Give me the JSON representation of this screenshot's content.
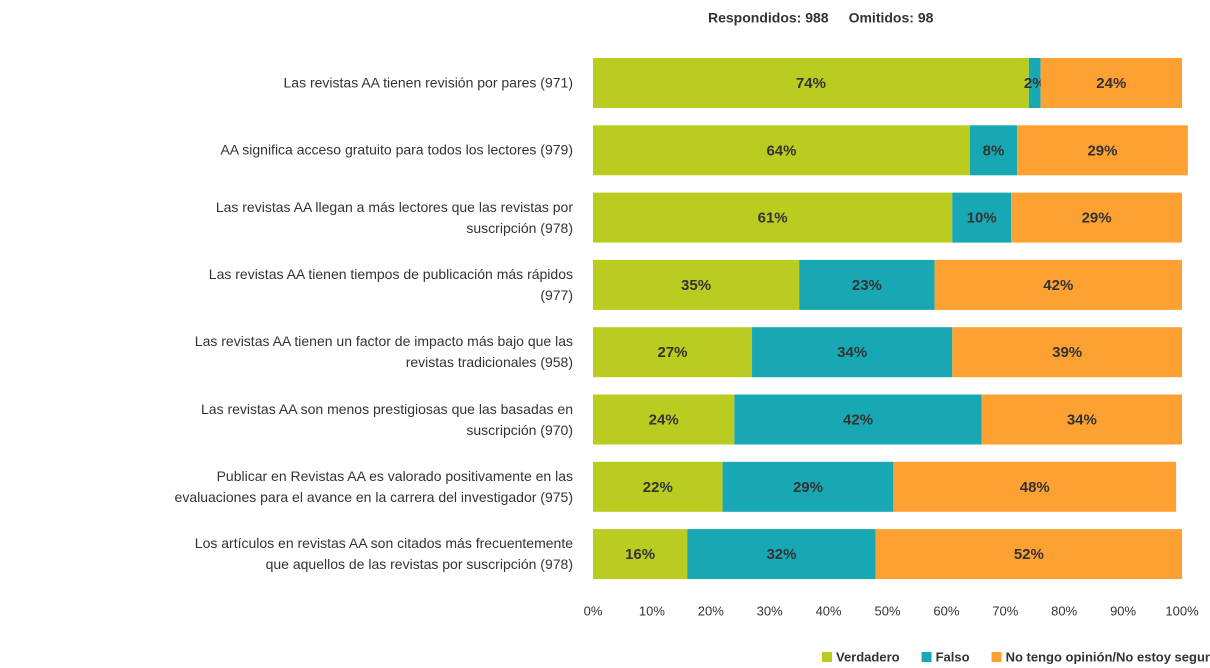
{
  "chart_data": {
    "type": "stacked_bar_horizontal",
    "annotations": [
      "Respondidos: 988",
      "Omitidos: 98"
    ],
    "categories": [
      "Las revistas AA tienen revisión por pares (971)",
      "AA significa acceso gratuito para todos los lectores (979)",
      "Las revistas AA llegan a más lectores que las revistas por\nsuscripción (978)",
      "Las revistas AA tienen tiempos de publicación más rápidos\n(977)",
      "Las revistas AA tienen un factor de impacto más bajo que las\nrevistas tradicionales (958)",
      "Las revistas AA son menos prestigiosas que las basadas en\nsuscripción (970)",
      "Publicar en Revistas AA es valorado positivamente en las\nevaluaciones para el avance en la carrera del investigador (975)",
      "Los artículos en revistas AA son citados más frecuentemente\nque aquellos de las revistas por suscripción (978)"
    ],
    "series": [
      {
        "name": "Verdadero",
        "color": "#b9cc1f",
        "values": [
          74,
          64,
          61,
          35,
          27,
          24,
          22,
          16
        ],
        "value_labels": [
          "74%",
          "64%",
          "61%",
          "35%",
          "27%",
          "24%",
          "22%",
          "16%"
        ]
      },
      {
        "name": "Falso",
        "color": "#18a8b4",
        "values": [
          2,
          8,
          10,
          23,
          34,
          42,
          29,
          32
        ],
        "value_labels": [
          "2%",
          "8%",
          "10%",
          "23%",
          "34%",
          "42%",
          "29%",
          "32%"
        ]
      },
      {
        "name": "No tengo opinión/No estoy seguro",
        "color": "#fda232",
        "values": [
          24,
          29,
          29,
          42,
          39,
          34,
          48,
          52
        ],
        "value_labels": [
          "24%",
          "29%",
          "29%",
          "42%",
          "39%",
          "34%",
          "48%",
          "52%"
        ]
      }
    ],
    "xlim": [
      0,
      100
    ],
    "xticks": [
      {
        "value": 0,
        "label": "0%"
      },
      {
        "value": 10,
        "label": "10%"
      },
      {
        "value": 20,
        "label": "20%"
      },
      {
        "value": 30,
        "label": "30%"
      },
      {
        "value": 40,
        "label": "40%"
      },
      {
        "value": 50,
        "label": "50%"
      },
      {
        "value": 60,
        "label": "60%"
      },
      {
        "value": 70,
        "label": "70%"
      },
      {
        "value": 80,
        "label": "80%"
      },
      {
        "value": 90,
        "label": "90%"
      },
      {
        "value": 100,
        "label": "100%"
      }
    ],
    "legend": "bottom"
  }
}
